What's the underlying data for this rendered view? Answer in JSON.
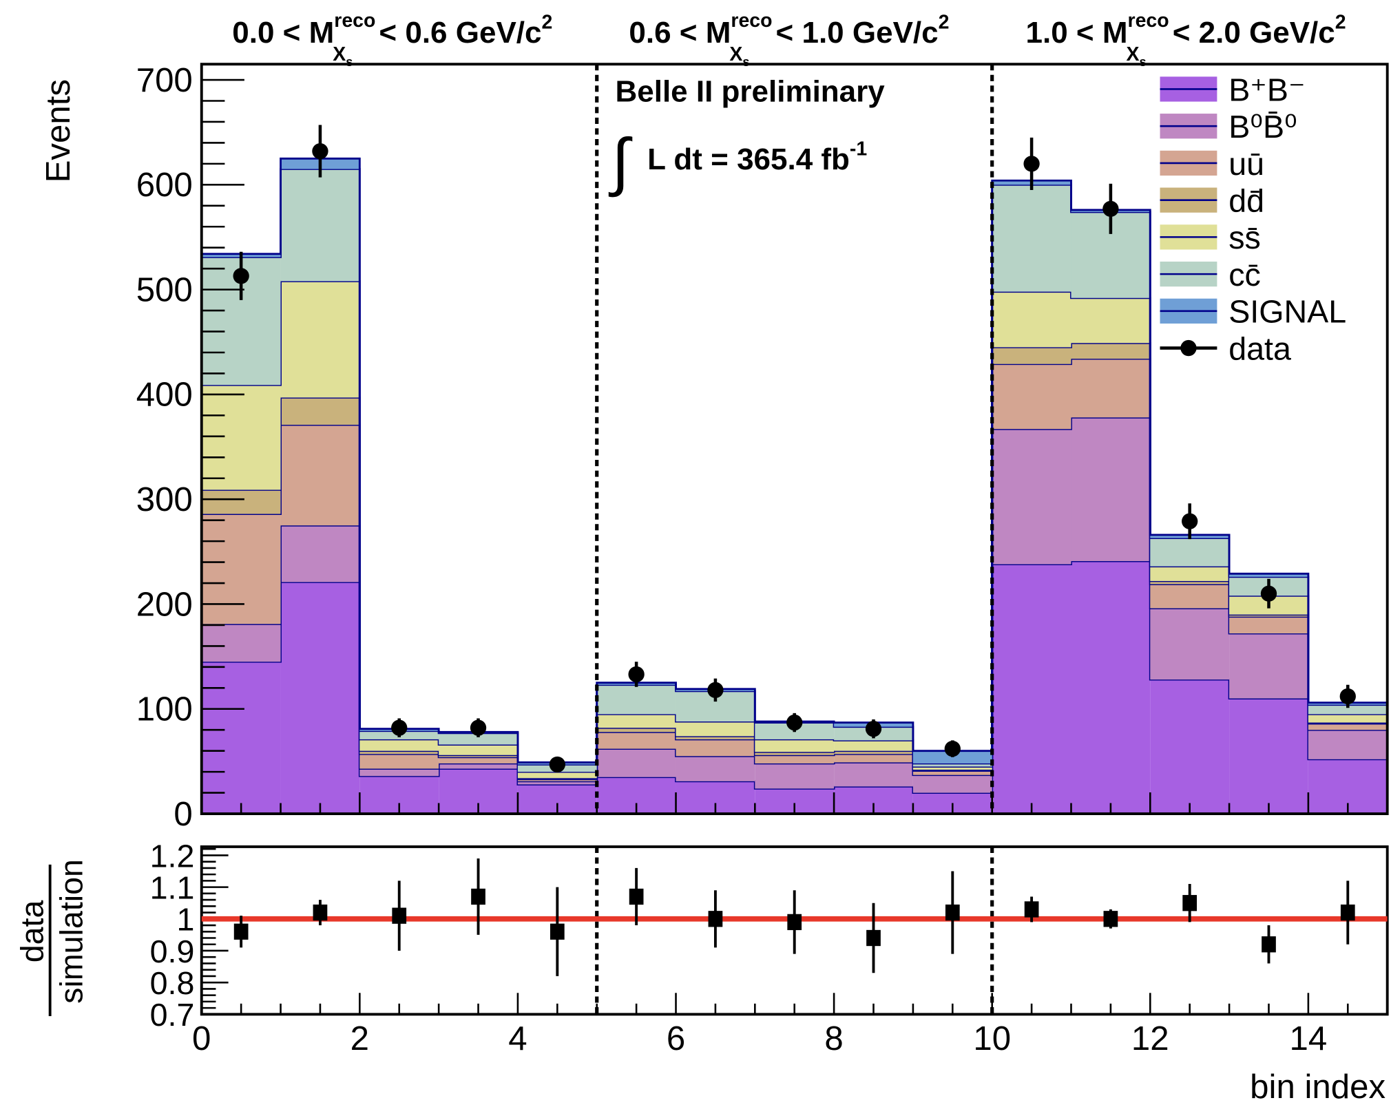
{
  "chart_data": {
    "type": "bar",
    "subtype": "stacked-histogram-with-ratio",
    "titles": [
      {
        "pre": "0.0 < M",
        "sup": "reco",
        "sub": "X",
        "subsub": "s",
        "post": " < 0.6 GeV/c",
        "exp": "2"
      },
      {
        "pre": "0.6 < M",
        "sup": "reco",
        "sub": "X",
        "subsub": "s",
        "post": " < 1.0 GeV/c",
        "exp": "2"
      },
      {
        "pre": "1.0 < M",
        "sup": "reco",
        "sub": "X",
        "subsub": "s",
        "post": " < 2.0 GeV/c",
        "exp": "2"
      }
    ],
    "annotation": {
      "experiment": "Belle II preliminary",
      "integral": "∫",
      "lumi": "L dt = 365.4 fb",
      "lumi_exp": "-1"
    },
    "xlabel": "bin index",
    "ylabel": "Events",
    "ratio_ylabel_num": "data",
    "ratio_ylabel_den": "simulation",
    "xlim": [
      0,
      15
    ],
    "ylim": [
      0,
      715
    ],
    "ratio_ylim": [
      0.7,
      1.227
    ],
    "xticks": [
      "0",
      "2",
      "4",
      "6",
      "8",
      "10",
      "12",
      "14"
    ],
    "yticks": [
      "0",
      "100",
      "200",
      "300",
      "400",
      "500",
      "600",
      "700"
    ],
    "ratio_yticks": [
      "0.7",
      "0.8",
      "0.9",
      "1",
      "1.1",
      "1.2"
    ],
    "dividers": [
      5,
      10
    ],
    "legend_position": "top-right",
    "bins": [
      0,
      1,
      2,
      3,
      4,
      5,
      6,
      7,
      8,
      9,
      10,
      11,
      12,
      13,
      14
    ],
    "series": [
      {
        "name": "B⁺B⁻",
        "color": "#a760e2",
        "values": [
          145,
          221,
          36,
          43,
          28,
          35,
          31,
          24,
          26,
          20,
          238,
          241,
          128,
          110,
          52
        ]
      },
      {
        "name": "B⁰B̄⁰",
        "color": "#bf87c2",
        "values": [
          36,
          54,
          7,
          5,
          3,
          27,
          24,
          24,
          23,
          17,
          129,
          137,
          68,
          62,
          28
        ]
      },
      {
        "name": "uū",
        "color": "#d4a592",
        "values": [
          105,
          96,
          14,
          6,
          2,
          16,
          16,
          8,
          8,
          4,
          62,
          56,
          23,
          16,
          6
        ]
      },
      {
        "name": "dd̄",
        "color": "#c9b27c",
        "values": [
          23,
          26,
          3,
          2,
          1,
          4,
          3,
          3,
          3,
          1,
          16,
          15,
          3,
          2,
          1
        ]
      },
      {
        "name": "ss̄",
        "color": "#e0e098",
        "values": [
          100,
          111,
          11,
          10,
          6,
          13,
          14,
          12,
          10,
          3,
          53,
          43,
          14,
          18,
          8
        ]
      },
      {
        "name": "cc̄",
        "color": "#b7d3c6",
        "values": [
          122,
          107,
          8,
          11,
          7,
          28,
          29,
          16,
          13,
          3,
          102,
          82,
          27,
          18,
          9
        ]
      },
      {
        "name": "SIGNAL",
        "color": "#6f9fd6",
        "values": [
          3,
          10,
          2,
          1,
          2,
          2,
          2,
          1,
          4,
          12,
          4,
          2,
          3,
          3,
          2
        ]
      }
    ],
    "data": {
      "name": "data",
      "values": [
        513,
        632,
        82,
        82,
        47,
        133,
        118,
        87,
        81,
        62,
        620,
        577,
        279,
        210,
        112
      ],
      "errors": [
        23,
        25,
        9,
        9,
        7,
        12,
        11,
        9,
        9,
        8,
        25,
        24,
        17,
        14,
        11
      ]
    },
    "ratio": {
      "values": [
        0.96,
        1.02,
        1.01,
        1.07,
        0.96,
        1.07,
        1.0,
        0.99,
        0.94,
        1.02,
        1.03,
        1.0,
        1.05,
        0.92,
        1.02
      ],
      "errors": [
        0.05,
        0.04,
        0.11,
        0.12,
        0.14,
        0.09,
        0.09,
        0.1,
        0.11,
        0.13,
        0.04,
        0.03,
        0.06,
        0.06,
        0.1
      ]
    },
    "reference_line": {
      "value": 1,
      "color": "#e8382a"
    },
    "outline_color": "#00008b"
  }
}
